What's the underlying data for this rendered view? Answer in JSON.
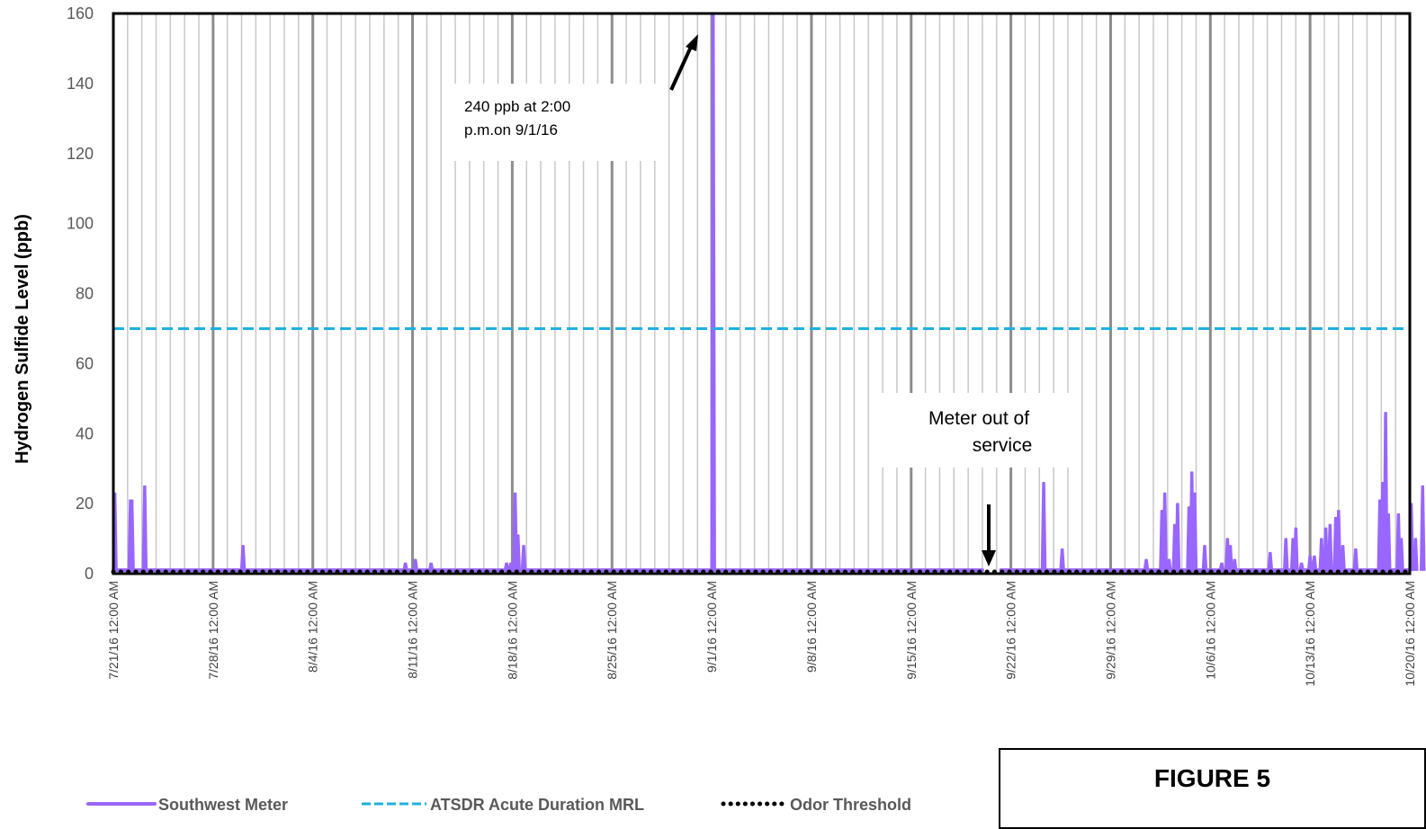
{
  "chart_data": {
    "type": "line",
    "ylabel": "Hydrogen Sulfide Level (ppb)",
    "xlabel": "",
    "ylim": [
      0,
      160
    ],
    "yticks": [
      0,
      20,
      40,
      60,
      80,
      100,
      120,
      140,
      160
    ],
    "xticks": [
      "7/21/16 12:00 AM",
      "7/28/16 12:00 AM",
      "8/4/16 12:00 AM",
      "8/11/16 12:00 AM",
      "8/18/16 12:00 AM",
      "8/25/16 12:00 AM",
      "9/1/16 12:00 AM",
      "9/8/16 12:00 AM",
      "9/15/16 12:00 AM",
      "9/22/16 12:00 AM",
      "9/29/16 12:00 AM",
      "10/6/16 12:00 AM",
      "10/13/16 12:00 AM",
      "10/20/16 12:00 AM"
    ],
    "xrange_days": [
      0,
      91
    ],
    "grid": "vertical daily lines, heavier weekly lines",
    "legend_position": "bottom-left",
    "series": [
      {
        "name": "Southwest Meter",
        "color": "#9966ff",
        "style": "solid",
        "baseline": 1,
        "gaps": [
          [
            61,
            62.3
          ]
        ],
        "peaks": [
          [
            0.1,
            23
          ],
          [
            1.2,
            21
          ],
          [
            1.3,
            21
          ],
          [
            2.2,
            25
          ],
          [
            9.1,
            8
          ],
          [
            20.5,
            3
          ],
          [
            21.2,
            4
          ],
          [
            22.3,
            3
          ],
          [
            27.6,
            3
          ],
          [
            27.9,
            3
          ],
          [
            28.2,
            23
          ],
          [
            28.4,
            11
          ],
          [
            28.8,
            8
          ],
          [
            42.1,
            240
          ],
          [
            65.3,
            26
          ],
          [
            66.6,
            7
          ],
          [
            72.5,
            4
          ],
          [
            73.6,
            18
          ],
          [
            73.8,
            23
          ],
          [
            74.1,
            4
          ],
          [
            74.5,
            14
          ],
          [
            74.7,
            20
          ],
          [
            75.5,
            19
          ],
          [
            75.7,
            29
          ],
          [
            75.9,
            23
          ],
          [
            76.6,
            8
          ],
          [
            77.8,
            3
          ],
          [
            78.2,
            10
          ],
          [
            78.4,
            8
          ],
          [
            78.7,
            4
          ],
          [
            81.2,
            6
          ],
          [
            82.3,
            10
          ],
          [
            82.8,
            10
          ],
          [
            83.0,
            13
          ],
          [
            83.4,
            3
          ],
          [
            84.0,
            5
          ],
          [
            84.3,
            5
          ],
          [
            84.8,
            10
          ],
          [
            85.1,
            13
          ],
          [
            85.4,
            14
          ],
          [
            85.8,
            16
          ],
          [
            86.0,
            18
          ],
          [
            86.3,
            8
          ],
          [
            87.2,
            7
          ],
          [
            88.9,
            21
          ],
          [
            89.1,
            26
          ],
          [
            89.3,
            46
          ],
          [
            89.5,
            17
          ],
          [
            90.2,
            17
          ],
          [
            90.4,
            10
          ],
          [
            91.1,
            20
          ],
          [
            91.4,
            10
          ],
          [
            91.9,
            25
          ]
        ]
      },
      {
        "name": "ATSDR Acute Duration MRL",
        "color": "#1fb0e0",
        "style": "dashed",
        "value": 70
      },
      {
        "name": "Odor Threshold",
        "color": "#000000",
        "style": "dotted",
        "value": 0.5
      }
    ],
    "annotations": [
      {
        "lines": [
          "240 ppb at 2:00",
          "p.m.on 9/1/16"
        ]
      },
      {
        "lines": [
          "Meter out of",
          "service"
        ]
      }
    ]
  },
  "figure_label": "FIGURE 5"
}
